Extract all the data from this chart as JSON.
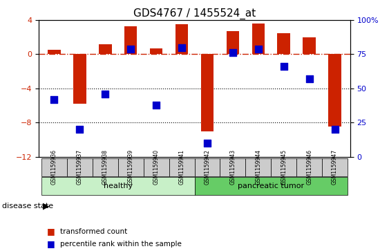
{
  "title": "GDS4767 / 1455524_at",
  "samples": [
    "GSM1159936",
    "GSM1159937",
    "GSM1159938",
    "GSM1159939",
    "GSM1159940",
    "GSM1159941",
    "GSM1159942",
    "GSM1159943",
    "GSM1159944",
    "GSM1159945",
    "GSM1159946",
    "GSM1159947"
  ],
  "red_bars": [
    0.5,
    -5.8,
    1.2,
    3.3,
    0.7,
    3.5,
    -9.0,
    2.7,
    3.6,
    2.5,
    2.0,
    -8.5
  ],
  "blue_dots": [
    42,
    20,
    46,
    79,
    38,
    80,
    10,
    76,
    79,
    66,
    57,
    20
  ],
  "ylim_left": [
    -12,
    4
  ],
  "ylim_right": [
    0,
    100
  ],
  "yticks_left": [
    4,
    0,
    -4,
    -8,
    -12
  ],
  "yticks_right": [
    100,
    75,
    50,
    25,
    0
  ],
  "hlines": [
    0,
    -4,
    -8
  ],
  "healthy_count": 6,
  "tumor_count": 6,
  "healthy_color": "#c8f0c8",
  "tumor_color": "#66cc66",
  "bar_color": "#cc2200",
  "dot_color": "#0000cc",
  "zero_line_color": "#cc2200",
  "hline_color": "#000000",
  "bg_color": "#ffffff",
  "plot_bg": "#ffffff",
  "group_label_healthy": "healthy",
  "group_label_tumor": "pancreatic tumor",
  "disease_state_label": "disease state",
  "legend_red": "transformed count",
  "legend_blue": "percentile rank within the sample",
  "bar_width": 0.5,
  "dot_size": 60,
  "xlabel_fontsize": 7,
  "title_fontsize": 11
}
